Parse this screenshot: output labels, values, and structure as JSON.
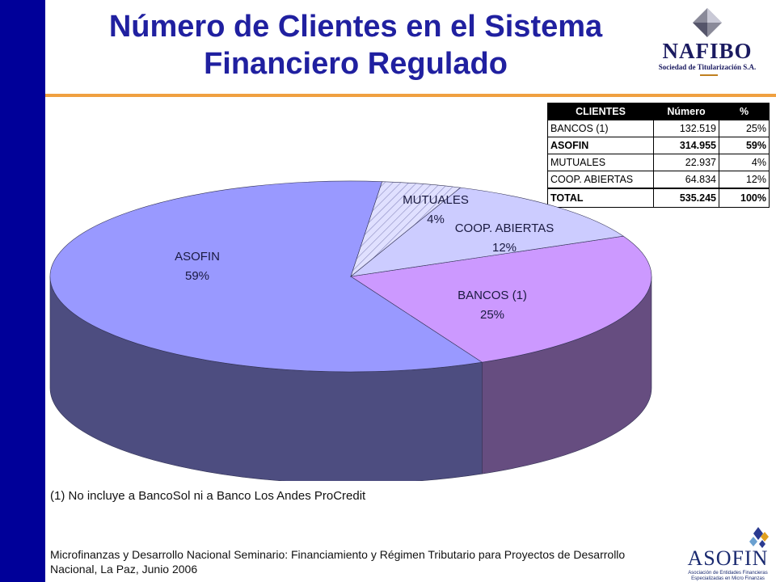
{
  "title": {
    "line1": "Número de Clientes en el Sistema",
    "line2": "Financiero Regulado"
  },
  "logos": {
    "nafibo": {
      "name": "NAFIBO",
      "tagline": "Sociedad de Titularización S.A."
    },
    "asofin": {
      "name": "ASOFIN",
      "tagline": "Asociación de Entidades Financieras Especializadas en Micro Finanzas"
    }
  },
  "table": {
    "headers": [
      "CLIENTES",
      "Número",
      "%"
    ],
    "rows": [
      {
        "label": "BANCOS (1)",
        "number": "132.519",
        "pct": "25%",
        "bold": false
      },
      {
        "label": "ASOFIN",
        "number": "314.955",
        "pct": "59%",
        "bold": true
      },
      {
        "label": "MUTUALES",
        "number": "22.937",
        "pct": "4%",
        "bold": false
      },
      {
        "label": "COOP. ABIERTAS",
        "number": "64.834",
        "pct": "12%",
        "bold": false
      }
    ],
    "total": {
      "label": "TOTAL",
      "number": "535.245",
      "pct": "100%"
    }
  },
  "chart_data": {
    "type": "pie",
    "title": "",
    "slices": [
      {
        "label": "BANCOS (1)",
        "value": 132519,
        "pct_label": "25%",
        "color": "#cc99ff",
        "side_color": "#664d80"
      },
      {
        "label": "ASOFIN",
        "value": 314955,
        "pct_label": "59%",
        "color": "#9999ff",
        "side_color": "#4d4d80"
      },
      {
        "label": "MUTUALES",
        "value": 22937,
        "pct_label": "4%",
        "color": "#d8d8ff",
        "side_color": "#6c6c80"
      },
      {
        "label": "COOP. ABIERTAS",
        "value": 64834,
        "pct_label": "12%",
        "color": "#ccccff",
        "side_color": "#666680"
      }
    ]
  },
  "footnote": "(1) No incluye a BancoSol ni a Banco Los Andes ProCredit",
  "source": "Microfinanzas y Desarrollo Nacional Seminario: Financiamiento y Régimen Tributario para Proyectos de Desarrollo Nacional, La Paz, Junio 2006"
}
